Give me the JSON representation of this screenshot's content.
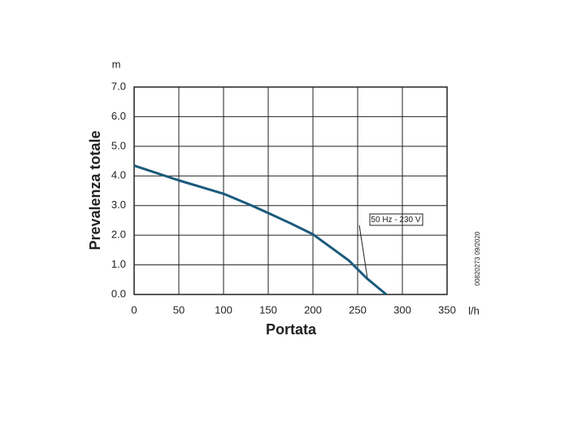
{
  "chart_data": {
    "type": "line",
    "x_label": "Portata",
    "y_label": "Prevalenza totale",
    "x_unit": "l/h",
    "y_unit": "m",
    "annotation": "50 Hz - 230 V",
    "code": "00820273 09/2020",
    "series": [
      {
        "color": "#1b5a7c",
        "x": [
          0,
          50,
          100,
          130,
          150,
          175,
          200,
          225,
          240,
          260,
          282
        ],
        "values": [
          4.35,
          3.85,
          3.4,
          3.02,
          2.75,
          2.4,
          2.03,
          1.48,
          1.15,
          0.55,
          0
        ]
      }
    ],
    "xlim": [
      0,
      350
    ],
    "xticks": [
      0,
      50,
      100,
      150,
      200,
      250,
      300,
      350
    ],
    "ylim": [
      0,
      7
    ],
    "yticks": [
      {
        "value": 0,
        "label": "0.0"
      },
      {
        "value": 1,
        "label": "1.0"
      },
      {
        "value": 2,
        "label": "2.0"
      },
      {
        "value": 3,
        "label": "3.0"
      },
      {
        "value": 4,
        "label": "4.0"
      },
      {
        "value": 5,
        "label": "5.0"
      },
      {
        "value": 6,
        "label": "6.0"
      },
      {
        "value": 7,
        "label": "7.0"
      }
    ],
    "grid": true
  }
}
